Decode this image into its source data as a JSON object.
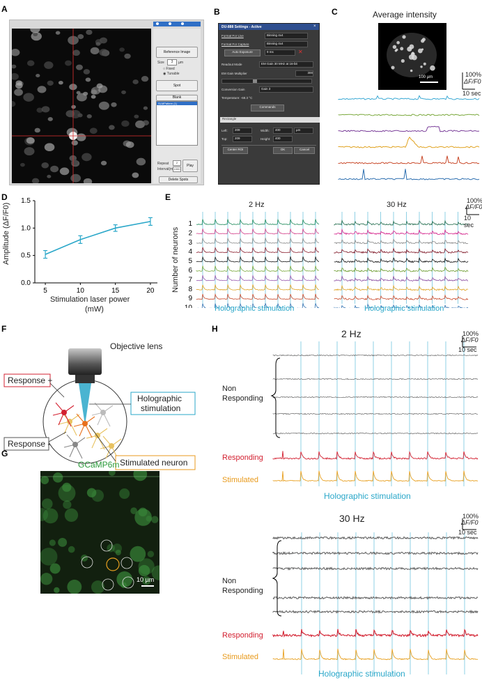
{
  "panel_labels": {
    "A": "A",
    "B": "B",
    "C": "C",
    "D": "D",
    "E": "E",
    "F": "F",
    "G": "G",
    "H": "H"
  },
  "panelA": {
    "reference_image": "Reference Image",
    "size_label": "Size",
    "size_value": "3",
    "size_unit": "µm",
    "fixed": "Fixed",
    "tunable": "Tunable",
    "spot": "Spot",
    "blank": "Blank",
    "list_item": "SLMPattern (1)",
    "repeat_label": "Repeat",
    "repeat_value": "2",
    "interval_label": "Interval(ms)",
    "interval_value": "1000",
    "play": "Play",
    "delete_spots": "Delete Spots"
  },
  "panelB": {
    "title": "DU-888 Settings - Active",
    "format_live_label": "Format For Live",
    "format_live_value": "Binning 4x4",
    "format_capture_label": "Format For Capture",
    "format_capture_value": "Binning 4x4",
    "auto_exposure": "Auto Exposure",
    "exposure_value": "9 ms",
    "readout_label": "Readout Mode",
    "readout_value": "EM Gain 30 MHz at 16-bit",
    "em_gain_label": "EM Gain Multiplier",
    "em_gain_value": "300",
    "conversion_label": "Conversion Gain",
    "conversion_value": "Gain 3",
    "temperature": "Temperature: -68.3 °C",
    "commands": "Commands",
    "rectangle": "Rectangle",
    "left_label": "Left:",
    "left_value": "209",
    "width_label": "Width:",
    "width_value": "400",
    "unit_value": "µm",
    "top_label": "Top:",
    "top_value": "209",
    "height_label": "Height:",
    "height_value": "400",
    "center_roi": "Center ROI",
    "ok": "OK",
    "cancel": "Cancel"
  },
  "panelC": {
    "title": "Average intensity",
    "scale": "100 µm",
    "ybar_pct": "100%",
    "ybar_label": "ΔF/F0",
    "xbar_label": "10 sec",
    "trace_colors": [
      "#3aa9d4",
      "#7aa83c",
      "#7b3f9a",
      "#e0a21f",
      "#c94a2b",
      "#2d6fb0"
    ]
  },
  "panelD": {
    "ylabel": "Amplitude (ΔF/F0)",
    "xlabel_1": "Stimulation laser power",
    "xlabel_2": "(mW)",
    "chart_data": {
      "type": "line",
      "x": [
        5,
        10,
        15,
        20
      ],
      "values": [
        0.52,
        0.79,
        1.0,
        1.12
      ],
      "errors": [
        0.07,
        0.07,
        0.06,
        0.07
      ],
      "xticks": [
        "5",
        "10",
        "15",
        "20"
      ],
      "yticks": [
        "0.0",
        "0.5",
        "1.0",
        "1.5"
      ],
      "ylim": [
        0,
        1.5
      ],
      "xlim": [
        3.5,
        21
      ],
      "color": "#2aa7c9"
    }
  },
  "panelE": {
    "title_left": "2 Hz",
    "title_right": "30 Hz",
    "ylabel": "Number of neurons",
    "neuron_ids": [
      "1",
      "2",
      "3",
      "4",
      "5",
      "6",
      "7",
      "8",
      "9",
      "10"
    ],
    "xlabel": "Holographic stimulation",
    "ybar_pct": "100%",
    "ybar_label": "ΔF/F0",
    "xbar_label": "10 sec",
    "left_colors": [
      "#1e8a5a",
      "#d4408a",
      "#8a8a8a",
      "#8b2030",
      "#1a1a1a",
      "#7aa83c",
      "#9a5cb0",
      "#e0a21f",
      "#c94a2b",
      "#2d6fb0"
    ],
    "right_colors": [
      "#1e6a4a",
      "#d4208a",
      "#888888",
      "#7b1020",
      "#111111",
      "#6a9a2c",
      "#8a4ca0",
      "#e0a21f",
      "#c94a2b",
      "#2d6fb0"
    ]
  },
  "panelF": {
    "objective": "Objective lens",
    "holo_1": "Holographic",
    "holo_2": "stimulation",
    "resp_plus": "Response +",
    "resp_minus": "Response -",
    "stimulated": "Stimulated neuron"
  },
  "panelG": {
    "title": "GCaMP6m",
    "scale": "10 µm"
  },
  "panelH": {
    "title_top": "2 Hz",
    "title_bottom": "30 Hz",
    "non_1": "Non",
    "non_2": "Responding",
    "responding": "Responding",
    "stimulated": "Stimulated",
    "xlabel": "Holographic stimulation",
    "ybar_pct": "100%",
    "ybar_label": "ΔF/F0",
    "xbar_label": "10 sec"
  }
}
